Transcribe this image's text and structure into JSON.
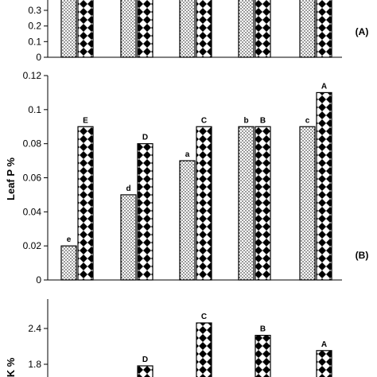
{
  "chart_data": [
    {
      "type": "bar",
      "panel_label": "(A)",
      "ylabel": "",
      "ylim": [
        0,
        0.3
      ],
      "yticks": [
        "0",
        "0.1",
        "0.2",
        "0.3"
      ],
      "grid": false,
      "series": [
        {
          "pattern": "dotted",
          "values": [
            0.33,
            0.33,
            0.33,
            0.33,
            0.33
          ],
          "labels": [
            "",
            "",
            "",
            "",
            ""
          ]
        },
        {
          "pattern": "diamond",
          "values": [
            0.33,
            0.33,
            0.33,
            0.33,
            0.33
          ],
          "labels": [
            "",
            "",
            "",
            "",
            ""
          ]
        }
      ]
    },
    {
      "type": "bar",
      "panel_label": "(B)",
      "ylabel": "Leaf P %",
      "ylim": [
        0,
        0.12
      ],
      "yticks": [
        "0",
        "0.02",
        "0.04",
        "0.06",
        "0.08",
        "0.1",
        "0.12"
      ],
      "grid": false,
      "series": [
        {
          "pattern": "dotted",
          "values": [
            0.02,
            0.05,
            0.07,
            0.09,
            0.09
          ],
          "labels": [
            "e",
            "d",
            "a",
            "b",
            "c"
          ]
        },
        {
          "pattern": "diamond",
          "values": [
            0.09,
            0.08,
            0.09,
            0.09,
            0.11
          ],
          "labels": [
            "E",
            "D",
            "C",
            "B",
            "A"
          ]
        }
      ]
    },
    {
      "type": "bar",
      "panel_label": "",
      "ylabel": "K %",
      "ylim": [
        1.6,
        2.6
      ],
      "yticks": [
        "1.8",
        "2.4"
      ],
      "grid": false,
      "series": [
        {
          "pattern": "dotted",
          "values": [
            1.7,
            1.7,
            1.7,
            1.7,
            1.7
          ],
          "labels": [
            "",
            "",
            "",
            "",
            ""
          ]
        },
        {
          "pattern": "diamond",
          "values": [
            1.65,
            1.9,
            2.35,
            2.22,
            2.06
          ],
          "labels": [
            "",
            "D",
            "C",
            "B",
            "A"
          ]
        }
      ]
    }
  ]
}
